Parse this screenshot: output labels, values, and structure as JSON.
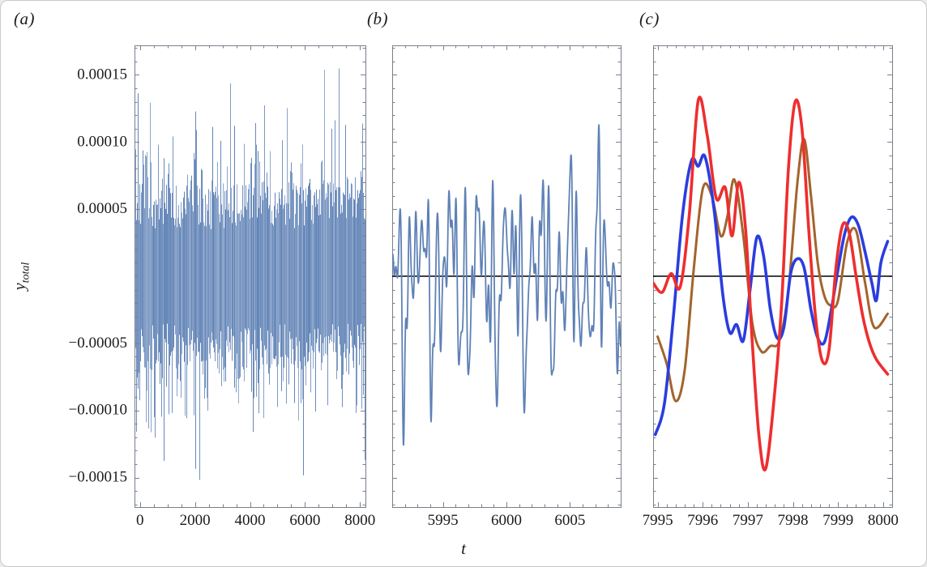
{
  "axis": {
    "y_label_main": "y",
    "y_label_sub": "total",
    "x_label": "t"
  },
  "colors": {
    "signal_blue": "#5e81b5",
    "series_red": "#ee2e2e",
    "series_blue": "#2b3dde",
    "series_brown": "#a3642c",
    "zero_line": "#000000",
    "frame": "#78808a",
    "tick_text": "#1b1b1b",
    "background": "#ffffff"
  },
  "chart_data": [
    {
      "type": "line",
      "panel_label": "(a)",
      "x_range": [
        -200,
        8200
      ],
      "y_range": [
        -0.000172,
        0.000172
      ],
      "x_ticks": [
        0,
        2000,
        4000,
        6000,
        8000
      ],
      "x_tick_labels": [
        "0",
        "2000",
        "4000",
        "6000",
        "8000"
      ],
      "x_minor_step": 500,
      "y_ticks": [
        0.00015,
        0.0001,
        5e-05,
        -5e-05,
        -0.0001,
        -0.00015
      ],
      "y_tick_labels": [
        "0.00015",
        "0.00010",
        "0.00005",
        "−0.00005",
        "−0.00010",
        "−0.00015"
      ],
      "y_minor_step": 1e-05,
      "zero_line": false,
      "noise": {
        "seed": 97,
        "base_amplitude": 3.5e-05,
        "spread": 3.5e-05,
        "spike_amplitude": 5.5e-05,
        "spike_probability": 0.55,
        "extreme_probability": 0.02,
        "extreme_range": [
          0.000125,
          0.000156
        ],
        "color": "#5e81b5"
      }
    },
    {
      "type": "line",
      "panel_label": "(b)",
      "x_range": [
        5991,
        6009
      ],
      "y_range": [
        -0.000172,
        0.000172
      ],
      "x_ticks": [
        5995,
        6000,
        6005
      ],
      "x_tick_labels": [
        "5995",
        "6000",
        "6005"
      ],
      "x_minor_step": 1,
      "y_ticks": [
        0.00015,
        0.0001,
        5e-05,
        -5e-05,
        -0.0001,
        -0.00015
      ],
      "y_tick_labels": [],
      "y_minor_step": 1e-05,
      "zero_line": true,
      "synthesis": {
        "amplitude_unit": 1e-05,
        "t_step": 0.02,
        "line_width": 1.8,
        "color": "#5e81b5",
        "components": [
          [
            3.1,
            0.42,
            0.8
          ],
          [
            2.7,
            0.95,
            2.3
          ],
          [
            2.6,
            1.35,
            4.1
          ],
          [
            2.1,
            1.8,
            1.4
          ],
          [
            1.7,
            2.3,
            3.6
          ],
          [
            1.3,
            2.75,
            0.6
          ],
          [
            1.0,
            3.2,
            5.2
          ],
          [
            0.7,
            3.8,
            2.9
          ]
        ]
      }
    },
    {
      "type": "line",
      "panel_label": "(c)",
      "x_range": [
        7994.9,
        8000.2
      ],
      "y_range": [
        -0.000172,
        0.000172
      ],
      "x_ticks": [
        7995,
        7996,
        7997,
        7998,
        7999,
        8000
      ],
      "x_tick_labels": [
        "7995",
        "7996",
        "7997",
        "7998",
        "7999",
        "8000"
      ],
      "x_minor_step": 0.2,
      "y_ticks": [
        0.00015,
        0.0001,
        5e-05,
        -5e-05,
        -0.0001,
        -0.00015
      ],
      "y_tick_labels": [],
      "y_minor_step": 1e-05,
      "zero_line": true,
      "amplitude_unit": 1e-05,
      "series": [
        {
          "name": "brown",
          "color": "#a3642c",
          "width": 3.0,
          "points": [
            [
              7995.0,
              -4.5
            ],
            [
              7995.2,
              -6.5
            ],
            [
              7995.4,
              -9.3
            ],
            [
              7995.6,
              -7.0
            ],
            [
              7995.8,
              0.5
            ],
            [
              7996.0,
              6.5
            ],
            [
              7996.2,
              6.0
            ],
            [
              7996.4,
              3.0
            ],
            [
              7996.55,
              4.5
            ],
            [
              7996.7,
              7.2
            ],
            [
              7996.9,
              3.0
            ],
            [
              7997.1,
              -3.5
            ],
            [
              7997.3,
              -5.6
            ],
            [
              7997.5,
              -5.2
            ],
            [
              7997.7,
              -4.8
            ],
            [
              7997.9,
              -1.0
            ],
            [
              7998.1,
              7.0
            ],
            [
              7998.25,
              10.2
            ],
            [
              7998.4,
              6.0
            ],
            [
              7998.55,
              1.0
            ],
            [
              7998.7,
              -1.5
            ],
            [
              7998.85,
              -2.2
            ],
            [
              7999.0,
              -1.8
            ],
            [
              7999.2,
              2.5
            ],
            [
              7999.4,
              3.4
            ],
            [
              7999.6,
              -0.5
            ],
            [
              7999.8,
              -3.8
            ],
            [
              8000.1,
              -2.8
            ]
          ]
        },
        {
          "name": "blue",
          "color": "#2b3dde",
          "width": 3.6,
          "points": [
            [
              7994.95,
              -11.8
            ],
            [
              7995.15,
              -9.5
            ],
            [
              7995.35,
              -3.0
            ],
            [
              7995.55,
              4.5
            ],
            [
              7995.75,
              8.6
            ],
            [
              7995.9,
              8.2
            ],
            [
              7996.05,
              8.9
            ],
            [
              7996.25,
              5.0
            ],
            [
              7996.45,
              -1.5
            ],
            [
              7996.6,
              -4.2
            ],
            [
              7996.75,
              -3.6
            ],
            [
              7996.9,
              -4.8
            ],
            [
              7997.05,
              -1.0
            ],
            [
              7997.2,
              2.9
            ],
            [
              7997.35,
              1.5
            ],
            [
              7997.5,
              -2.5
            ],
            [
              7997.65,
              -4.6
            ],
            [
              7997.8,
              -3.8
            ],
            [
              7997.95,
              0.2
            ],
            [
              7998.1,
              1.3
            ],
            [
              7998.25,
              0.6
            ],
            [
              7998.4,
              -2.5
            ],
            [
              7998.55,
              -4.6
            ],
            [
              7998.7,
              -4.9
            ],
            [
              7998.85,
              -2.5
            ],
            [
              7999.0,
              0.5
            ],
            [
              7999.15,
              3.2
            ],
            [
              7999.3,
              4.4
            ],
            [
              7999.45,
              3.8
            ],
            [
              7999.6,
              1.8
            ],
            [
              7999.75,
              -0.5
            ],
            [
              7999.85,
              -1.8
            ],
            [
              7999.95,
              1.0
            ],
            [
              8000.1,
              2.6
            ]
          ]
        },
        {
          "name": "red",
          "color": "#ee2e2e",
          "width": 3.6,
          "points": [
            [
              7994.9,
              -0.5
            ],
            [
              7995.1,
              -1.2
            ],
            [
              7995.3,
              0.2
            ],
            [
              7995.5,
              -0.8
            ],
            [
              7995.7,
              4.5
            ],
            [
              7995.9,
              13.1
            ],
            [
              7996.1,
              10.5
            ],
            [
              7996.3,
              5.8
            ],
            [
              7996.5,
              6.6
            ],
            [
              7996.65,
              3.0
            ],
            [
              7996.8,
              7.0
            ],
            [
              7996.95,
              3.5
            ],
            [
              7997.1,
              -5.0
            ],
            [
              7997.25,
              -12.0
            ],
            [
              7997.4,
              -14.3
            ],
            [
              7997.6,
              -8.5
            ],
            [
              7997.75,
              -2.0
            ],
            [
              7997.9,
              8.0
            ],
            [
              7998.05,
              13.0
            ],
            [
              7998.2,
              11.0
            ],
            [
              7998.35,
              3.5
            ],
            [
              7998.5,
              -3.0
            ],
            [
              7998.65,
              -6.3
            ],
            [
              7998.8,
              -5.5
            ],
            [
              7998.95,
              0.5
            ],
            [
              7999.1,
              3.8
            ],
            [
              7999.25,
              3.2
            ],
            [
              7999.4,
              0.0
            ],
            [
              7999.55,
              -3.0
            ],
            [
              7999.7,
              -5.0
            ],
            [
              7999.85,
              -6.2
            ],
            [
              8000.1,
              -7.3
            ]
          ]
        }
      ]
    }
  ]
}
